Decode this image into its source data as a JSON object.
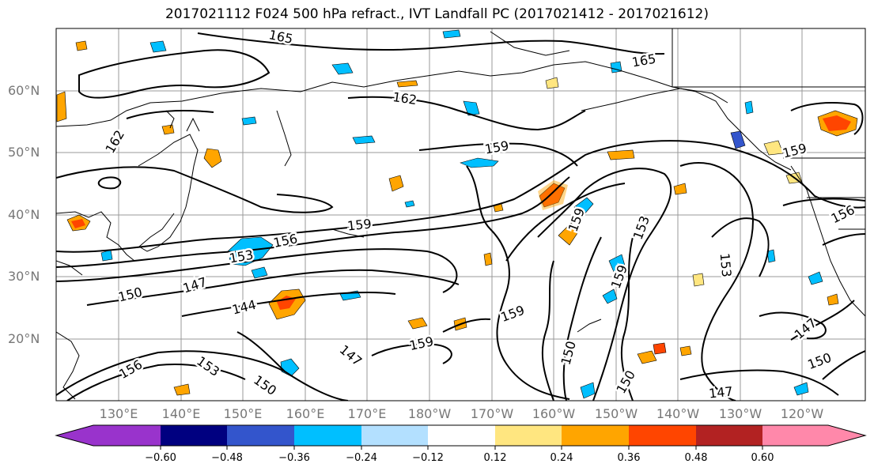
{
  "title": "2017021112 F024 500 hPa refract., IVT Landfall PC (2017021412 - 2017021612)",
  "lat_labels": [
    "60°N",
    "50°N",
    "40°N",
    "30°N",
    "20°N"
  ],
  "lon_labels": [
    "130°E",
    "140°E",
    "150°E",
    "160°E",
    "170°E",
    "180°W",
    "170°W",
    "160°W",
    "150°W",
    "140°W",
    "130°W",
    "120°W"
  ],
  "contour_labels": [
    "165",
    "165",
    "162",
    "162",
    "159",
    "159",
    "159",
    "159",
    "159",
    "159",
    "159",
    "156",
    "156",
    "153",
    "153",
    "153",
    "153",
    "150",
    "150",
    "150",
    "150",
    "150",
    "147",
    "147",
    "147",
    "147",
    "144",
    "156"
  ],
  "colorbar": {
    "colors": [
      "#9933cc",
      "#000080",
      "#3355cc",
      "#00bfff",
      "#b3e0ff",
      "#ffffff",
      "#ffe680",
      "#ffa500",
      "#ff4500",
      "#b22222",
      "#ff88aa"
    ],
    "tick_labels": [
      "−0.60",
      "−0.48",
      "−0.36",
      "−0.24",
      "−0.12",
      "0.12",
      "0.24",
      "0.36",
      "0.48",
      "0.60"
    ]
  }
}
